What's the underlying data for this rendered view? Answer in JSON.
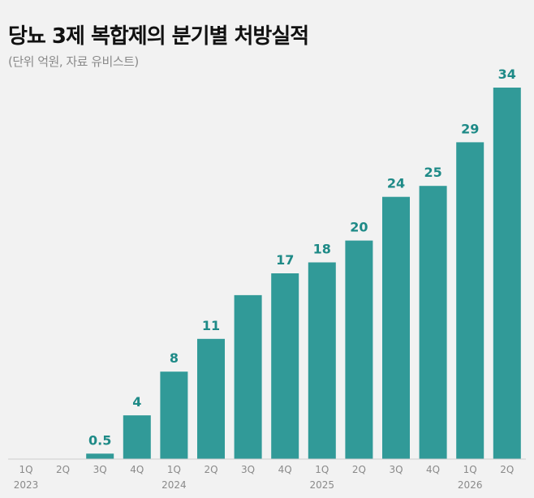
{
  "header": {
    "title": "당뇨 3제 복합제의 분기별 처방실적",
    "subtitle": "(단위 억원, 자료 유비스트)"
  },
  "chart_data": {
    "type": "bar",
    "title": "당뇨 3제 복합제의 분기별 처방실적",
    "subtitle": "(단위 억원, 자료 유비스트)",
    "categories": [
      "1Q",
      "2Q",
      "3Q",
      "4Q",
      "1Q",
      "2Q",
      "3Q",
      "4Q",
      "1Q",
      "2Q",
      "3Q",
      "4Q",
      "1Q",
      "2Q"
    ],
    "years": [
      {
        "label": "2023",
        "start": 0
      },
      {
        "label": "2024",
        "start": 4
      },
      {
        "label": "2025",
        "start": 8
      },
      {
        "label": "2026",
        "start": 12
      }
    ],
    "values": [
      0,
      0,
      0.5,
      4,
      8,
      11,
      15,
      17,
      18,
      20,
      24,
      25,
      29,
      34
    ],
    "labels": [
      "",
      "",
      "0.5",
      "4",
      "8",
      "11",
      "",
      "17",
      "18",
      "20",
      "24",
      "25",
      "29",
      "34"
    ],
    "ylim": [
      0,
      34
    ],
    "grid": false,
    "colors": {
      "bar": "#319a98",
      "value_label": "#1e8a87"
    }
  }
}
